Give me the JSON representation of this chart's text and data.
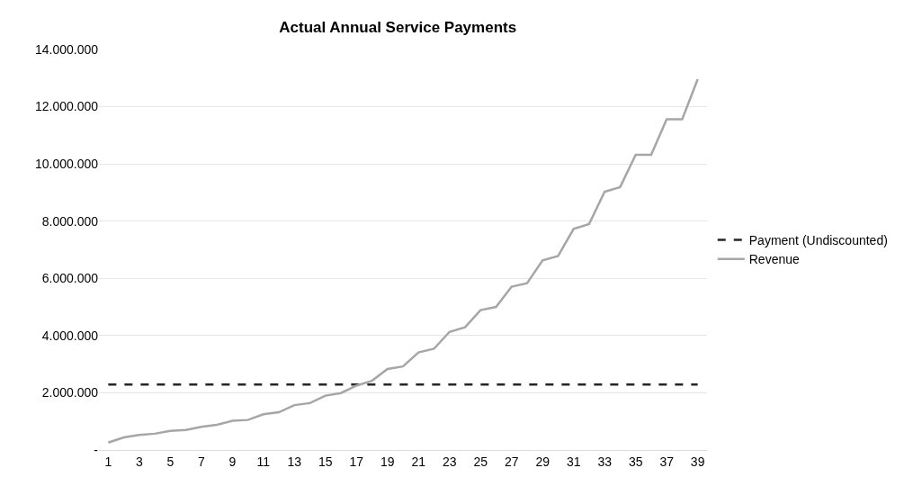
{
  "chart_data": {
    "type": "line",
    "title": "Actual Annual Service Payments",
    "x": [
      1,
      2,
      3,
      4,
      5,
      6,
      7,
      8,
      9,
      10,
      11,
      12,
      13,
      14,
      15,
      16,
      17,
      18,
      19,
      20,
      21,
      22,
      23,
      24,
      25,
      26,
      27,
      28,
      29,
      30,
      31,
      32,
      33,
      34,
      35,
      36,
      37,
      38,
      39
    ],
    "series": [
      {
        "name": "Payment (Undiscounted)",
        "color": "#262626",
        "line_style": "dashed",
        "values": [
          2290000,
          2290000,
          2290000,
          2290000,
          2290000,
          2290000,
          2290000,
          2290000,
          2290000,
          2290000,
          2290000,
          2290000,
          2290000,
          2290000,
          2290000,
          2290000,
          2290000,
          2290000,
          2290000,
          2290000,
          2290000,
          2290000,
          2290000,
          2290000,
          2290000,
          2290000,
          2290000,
          2290000,
          2290000,
          2290000,
          2290000,
          2290000,
          2290000,
          2290000,
          2290000,
          2290000,
          2290000,
          2290000,
          2290000
        ]
      },
      {
        "name": "Revenue",
        "color": "#a6a6a6",
        "line_style": "solid",
        "values": [
          260000,
          440000,
          530000,
          570000,
          670000,
          700000,
          810000,
          880000,
          1020000,
          1050000,
          1250000,
          1320000,
          1570000,
          1640000,
          1900000,
          1990000,
          2250000,
          2420000,
          2830000,
          2920000,
          3410000,
          3540000,
          4130000,
          4290000,
          4890000,
          5000000,
          5710000,
          5830000,
          6630000,
          6780000,
          7730000,
          7900000,
          9030000,
          9190000,
          10320000,
          10320000,
          11560000,
          11560000,
          12960000
        ]
      }
    ],
    "xlim": [
      0.4,
      39.6
    ],
    "xticks": [
      1,
      3,
      5,
      7,
      9,
      11,
      13,
      15,
      17,
      19,
      21,
      23,
      25,
      27,
      29,
      31,
      33,
      35,
      37,
      39
    ],
    "ylim": [
      0,
      14000000
    ],
    "yticks": [
      {
        "value": 0,
        "label": "-"
      },
      {
        "value": 2000000,
        "label": "2.000.000"
      },
      {
        "value": 4000000,
        "label": "4.000.000"
      },
      {
        "value": 6000000,
        "label": "6.000.000"
      },
      {
        "value": 8000000,
        "label": "8.000.000"
      },
      {
        "value": 10000000,
        "label": "10.000.000"
      },
      {
        "value": 12000000,
        "label": "12.000.000"
      },
      {
        "value": 14000000,
        "label": "14.000.000"
      }
    ],
    "grid": "y",
    "legend": "right",
    "marker": "none"
  }
}
